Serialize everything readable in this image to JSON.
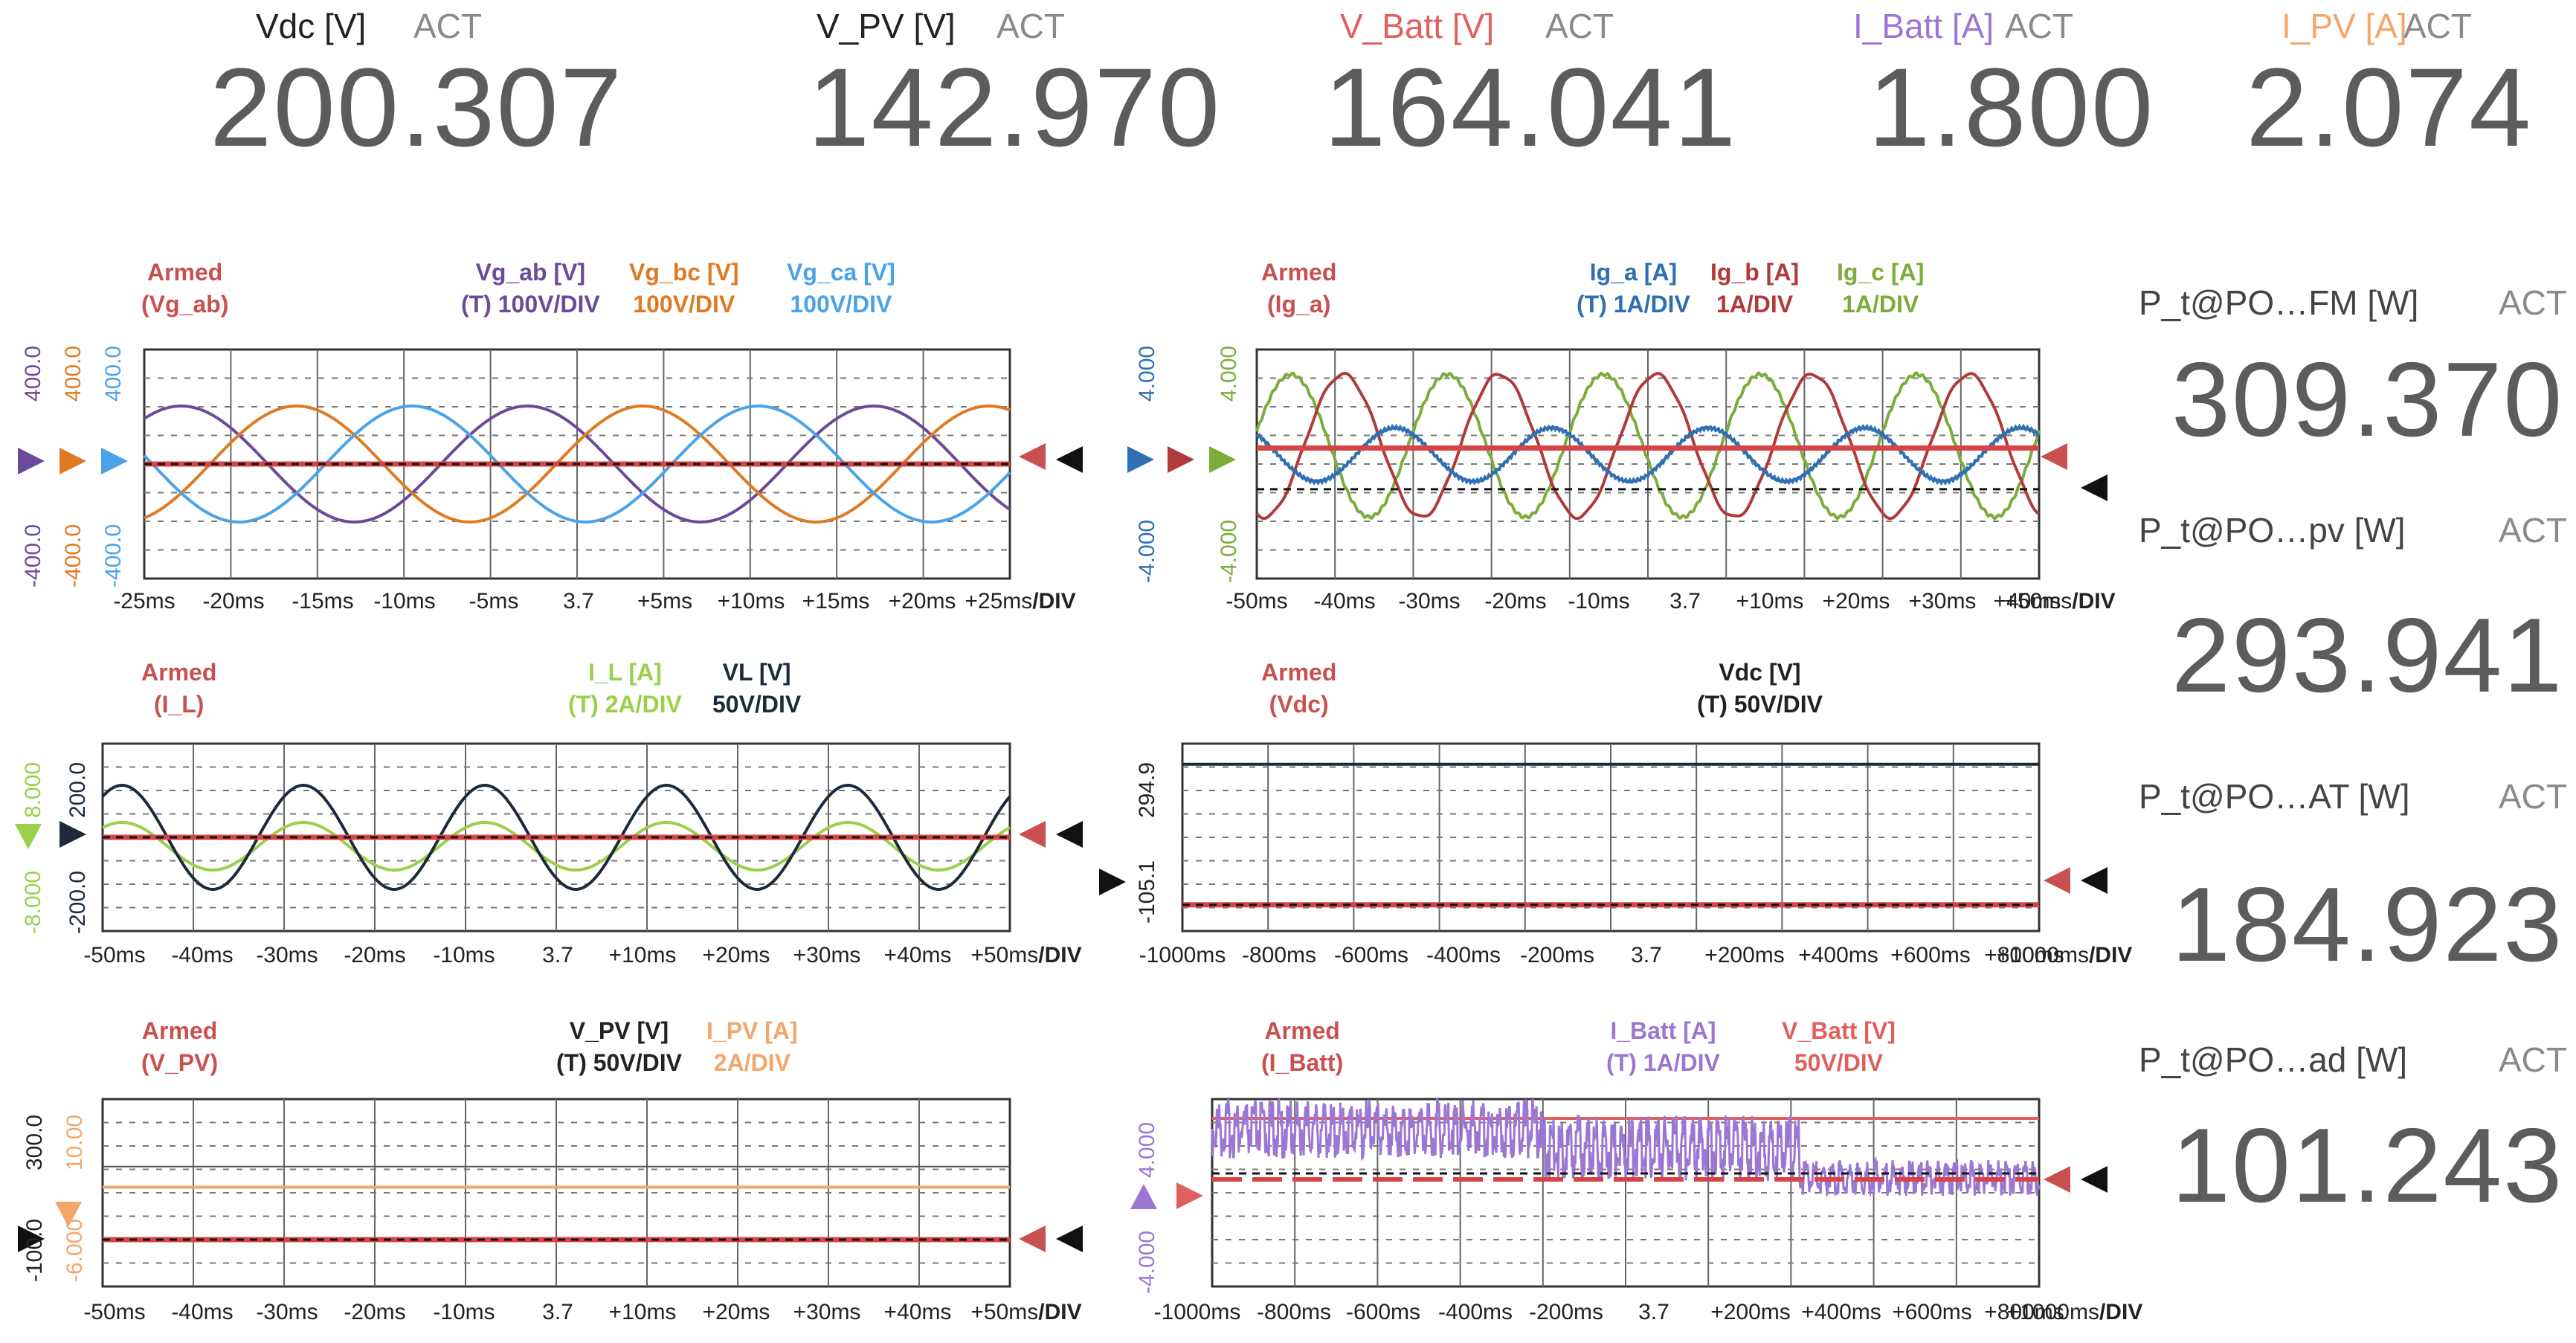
{
  "meters": [
    {
      "label": "Vdc [V]",
      "status": "ACT",
      "value": "200.307",
      "color": "#222222"
    },
    {
      "label": "V_PV [V]",
      "status": "ACT",
      "value": "142.970",
      "color": "#222222"
    },
    {
      "label": "V_Batt [V]",
      "status": "ACT",
      "value": "164.041",
      "color": "#e06060"
    },
    {
      "label": "I_Batt [A]",
      "status": "ACT",
      "value": "1.800",
      "color": "#9b77d3"
    },
    {
      "label": "I_PV [A]",
      "status": "ACT",
      "value": "2.074",
      "color": "#f4a66b"
    }
  ],
  "right_meters": [
    {
      "label": "P_t@PO…FM [W]",
      "status": "ACT",
      "value": "309.370"
    },
    {
      "label": "P_t@PO…pv [W]",
      "status": "ACT",
      "value": "293.941"
    },
    {
      "label": "P_t@PO…AT [W]",
      "status": "ACT",
      "value": "184.923"
    },
    {
      "label": "P_t@PO…ad [W]",
      "status": "ACT",
      "value": "101.243"
    }
  ],
  "scopes": [
    {
      "armed": "Armed",
      "trigger_source": "(Vg_ab)",
      "channels": [
        {
          "name": "Vg_ab [V]",
          "scale": "(T) 100V/DIV",
          "color": "#6b4a9a"
        },
        {
          "name": "Vg_bc [V]",
          "scale": "100V/DIV",
          "color": "#de7b22"
        },
        {
          "name": "Vg_ca [V]",
          "scale": "100V/DIV",
          "color": "#4aa3e8"
        }
      ],
      "y_labels": [
        {
          "top": "400.0",
          "bottom": "-400.0",
          "color": "#6b4a9a"
        },
        {
          "top": "400.0",
          "bottom": "-400.0",
          "color": "#de7b22"
        },
        {
          "top": "400.0",
          "bottom": "-400.0",
          "color": "#4aa3e8"
        }
      ],
      "x_ticks": [
        "-25ms",
        "-20ms",
        "-15ms",
        "-10ms",
        "-5ms",
        "3.7",
        "+5ms",
        "+10ms",
        "+15ms",
        "+20ms",
        "+25ms"
      ],
      "x_unit": "/DIV"
    },
    {
      "armed": "Armed",
      "trigger_source": "(Ig_a)",
      "channels": [
        {
          "name": "Ig_a [A]",
          "scale": "(T) 1A/DIV",
          "color": "#2f6fb2"
        },
        {
          "name": "Ig_b [A]",
          "scale": "1A/DIV",
          "color": "#b03a3a"
        },
        {
          "name": "Ig_c [A]",
          "scale": "1A/DIV",
          "color": "#7cac3a"
        }
      ],
      "y_labels": [
        {
          "top": "4.000",
          "bottom": "-4.000",
          "color": "#2f6fb2"
        },
        {
          "top": "4.000",
          "bottom": "-4.000",
          "color": "#7cac3a"
        }
      ],
      "x_ticks": [
        "-50ms",
        "-40ms",
        "-30ms",
        "-20ms",
        "-10ms",
        "3.7",
        "+10ms",
        "+20ms",
        "+30ms",
        "+40ms",
        "+50ms"
      ],
      "x_unit": "/DIV"
    },
    {
      "armed": "Armed",
      "trigger_source": "(I_L)",
      "channels": [
        {
          "name": "I_L [A]",
          "scale": "(T) 2A/DIV",
          "color": "#9ad04a"
        },
        {
          "name": "VL [V]",
          "scale": "50V/DIV",
          "color": "#1c2a3a"
        }
      ],
      "y_labels": [
        {
          "top": "8.000",
          "bottom": "-8.000",
          "color": "#9ad04a"
        },
        {
          "top": "200.0",
          "bottom": "-200.0",
          "color": "#1c2a3a"
        }
      ],
      "x_ticks": [
        "-50ms",
        "-40ms",
        "-30ms",
        "-20ms",
        "-10ms",
        "3.7",
        "+10ms",
        "+20ms",
        "+30ms",
        "+40ms",
        "+50ms"
      ],
      "x_unit": "/DIV"
    },
    {
      "armed": "Armed",
      "trigger_source": "(Vdc)",
      "channels": [
        {
          "name": "Vdc [V]",
          "scale": "(T) 50V/DIV",
          "color": "#222222"
        }
      ],
      "y_labels": [
        {
          "top": "294.9",
          "bottom": "-105.1",
          "color": "#222222"
        }
      ],
      "x_ticks": [
        "-1000ms",
        "-800ms",
        "-600ms",
        "-400ms",
        "-200ms",
        "3.7",
        "+200ms",
        "+400ms",
        "+600ms",
        "+800ms",
        "+1000ms"
      ],
      "x_unit": "/DIV"
    },
    {
      "armed": "Armed",
      "trigger_source": "(V_PV)",
      "channels": [
        {
          "name": "V_PV [V]",
          "scale": "(T) 50V/DIV",
          "color": "#222222"
        },
        {
          "name": "I_PV [A]",
          "scale": "2A/DIV",
          "color": "#f4a66b"
        }
      ],
      "y_labels": [
        {
          "top": "300.0",
          "bottom": "-100.0",
          "color": "#222222"
        },
        {
          "top": "10.00",
          "bottom": "-6.000",
          "color": "#f4a66b"
        }
      ],
      "x_ticks": [
        "-50ms",
        "-40ms",
        "-30ms",
        "-20ms",
        "-10ms",
        "3.7",
        "+10ms",
        "+20ms",
        "+30ms",
        "+40ms",
        "+50ms"
      ],
      "x_unit": "/DIV"
    },
    {
      "armed": "Armed",
      "trigger_source": "(I_Batt)",
      "channels": [
        {
          "name": "I_Batt [A]",
          "scale": "(T) 1A/DIV",
          "color": "#9b77d3"
        },
        {
          "name": "V_Batt [V]",
          "scale": "50V/DIV",
          "color": "#e06060"
        }
      ],
      "y_labels": [
        {
          "top": "4.000",
          "bottom": "-4.000",
          "color": "#9b77d3"
        }
      ],
      "x_ticks": [
        "-1000ms",
        "-800ms",
        "-600ms",
        "-400ms",
        "-200ms",
        "3.7",
        "+200ms",
        "+400ms",
        "+600ms",
        "+800ms",
        "+1000ms"
      ],
      "x_unit": "/DIV"
    }
  ]
}
